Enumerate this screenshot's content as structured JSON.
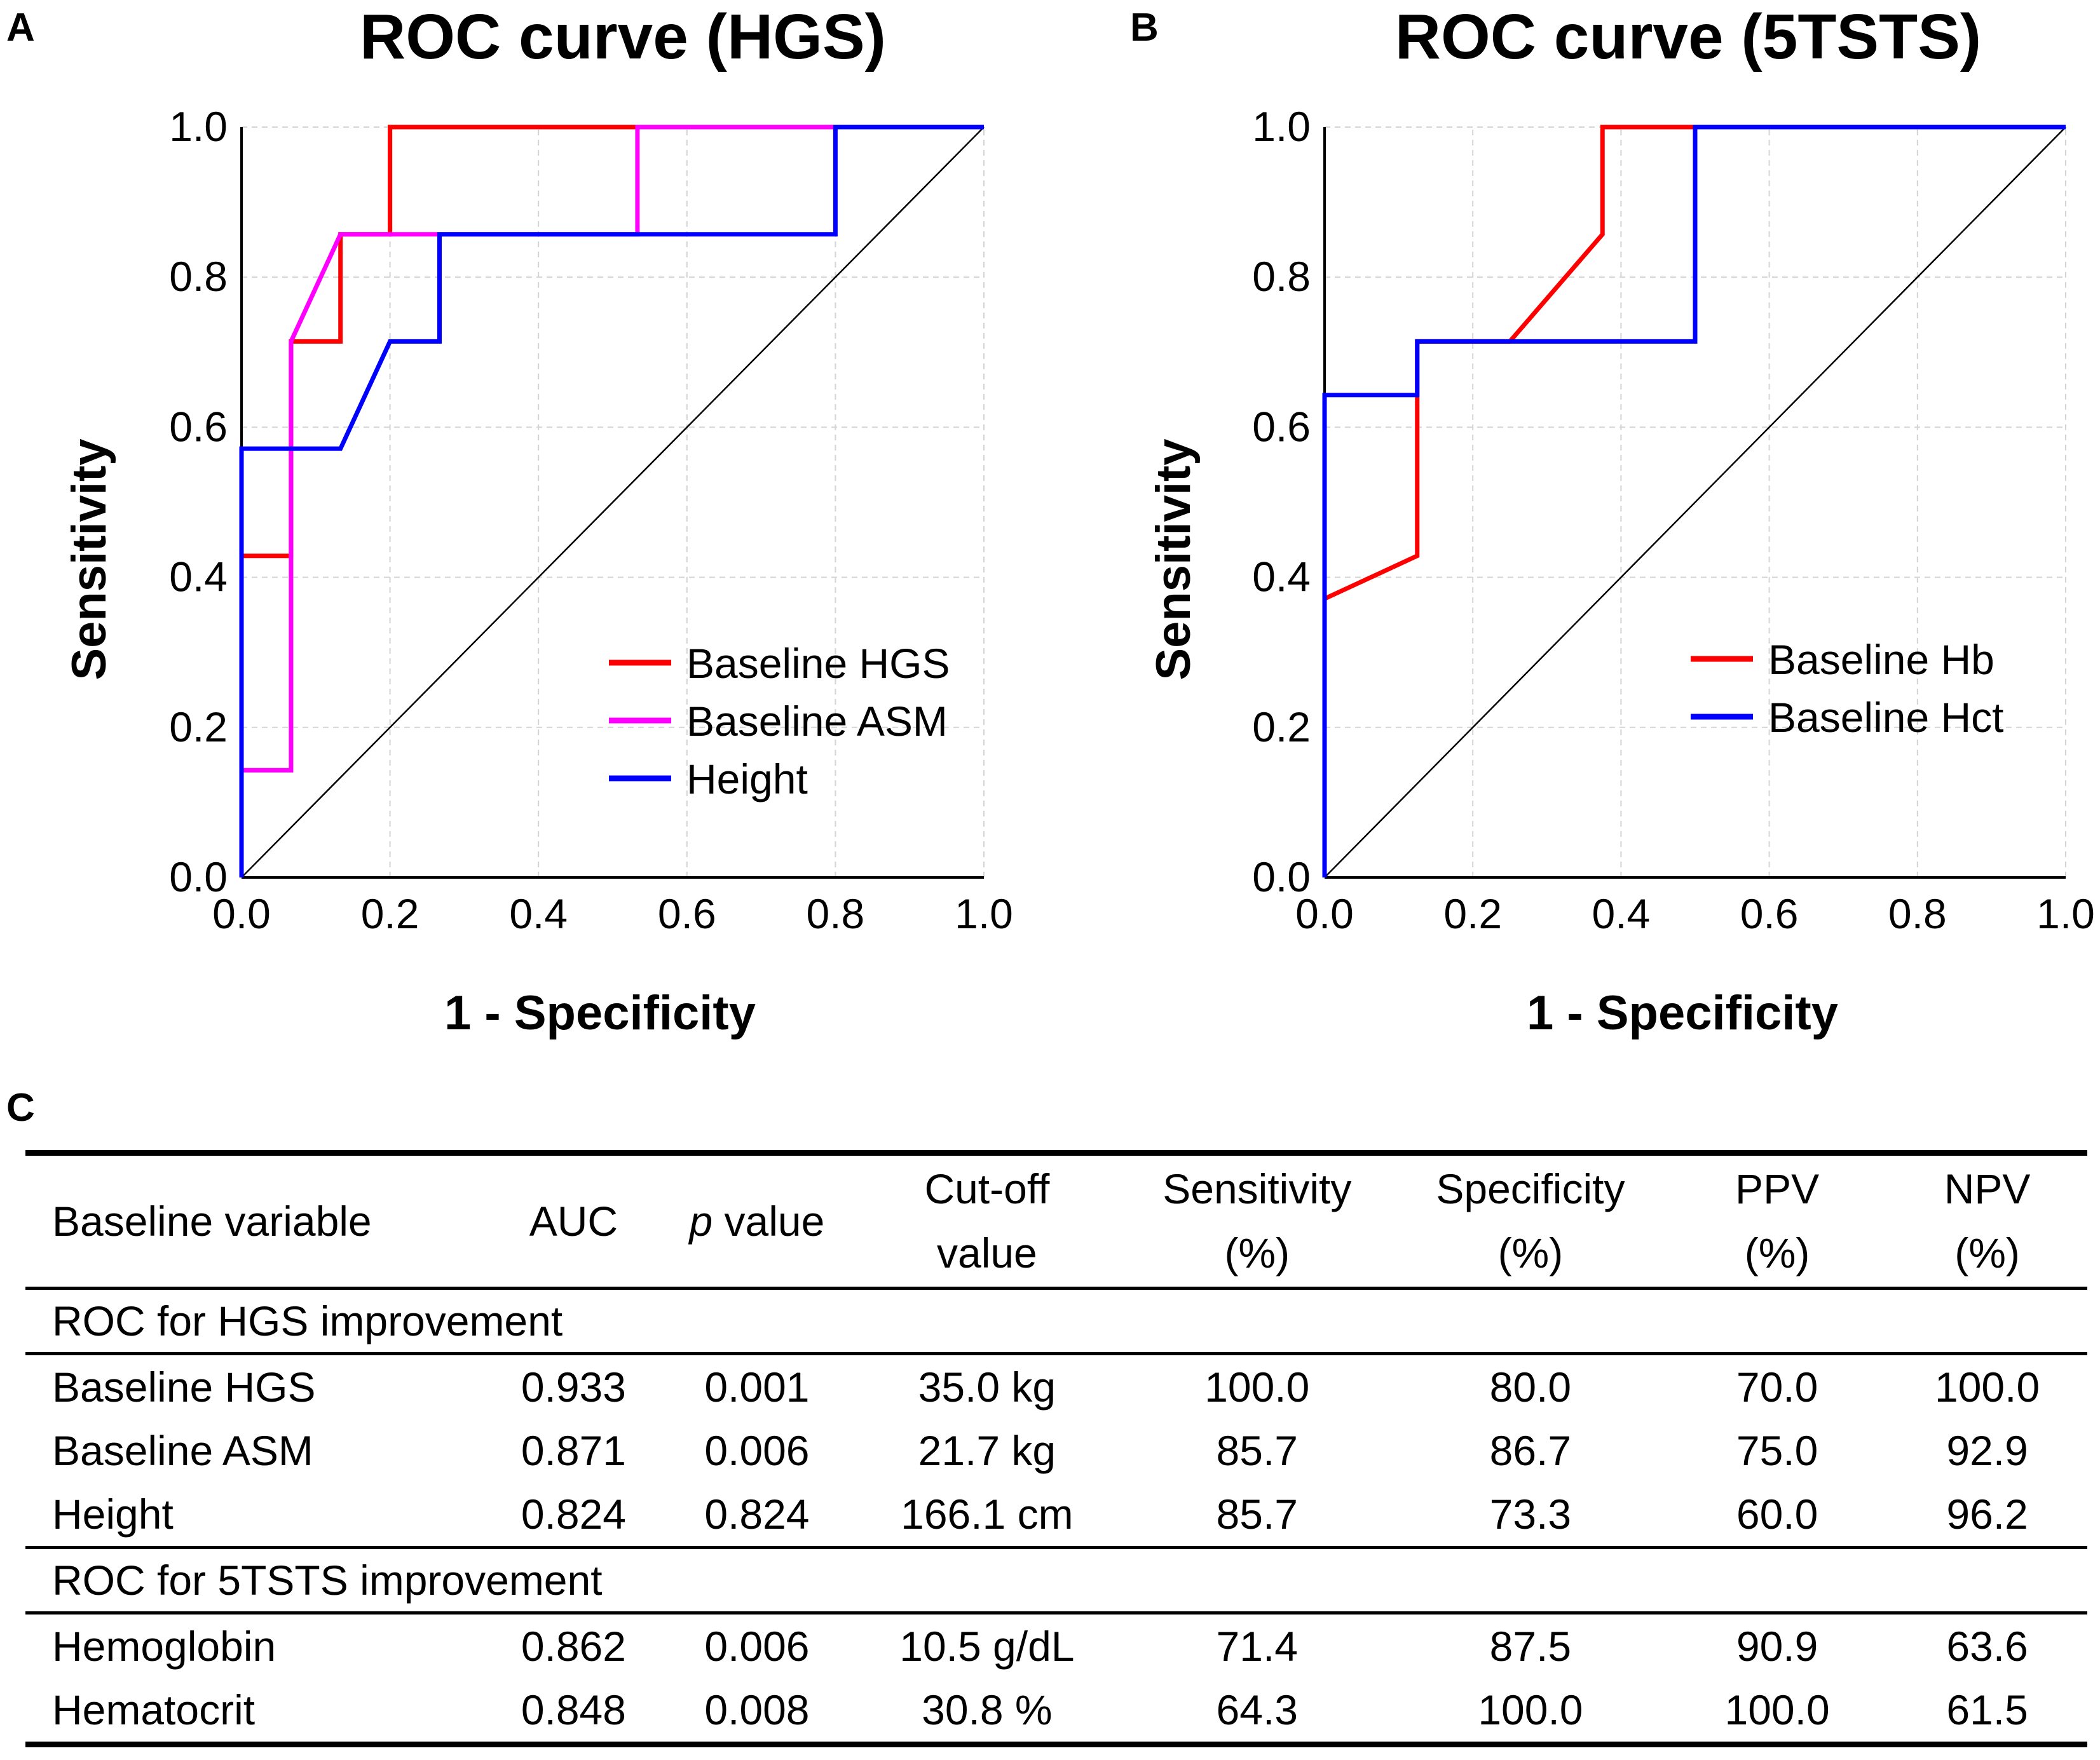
{
  "panels": [
    {
      "letter": "A"
    },
    {
      "letter": "B"
    },
    {
      "letter": "C"
    }
  ],
  "chart_data": [
    {
      "type": "line",
      "title": "ROC curve (HGS)",
      "xlabel": "1 - Specificity",
      "ylabel": "Sensitivity",
      "xlim": [
        0,
        1
      ],
      "ylim": [
        0,
        1
      ],
      "xticks": [
        "0.0",
        "0.2",
        "0.4",
        "0.6",
        "0.8",
        "1.0"
      ],
      "yticks": [
        "0.0",
        "0.2",
        "0.4",
        "0.6",
        "0.8",
        "1.0"
      ],
      "grid": true,
      "legend_position": "bottom-right",
      "series": [
        {
          "name": "Baseline HGS",
          "color": "#ff0000",
          "x": [
            0,
            0,
            0.0667,
            0.0667,
            0.1333,
            0.1333,
            0.2,
            0.2,
            1.0
          ],
          "y": [
            0,
            0.4286,
            0.4286,
            0.7143,
            0.7143,
            0.8571,
            0.8571,
            1.0,
            1.0
          ]
        },
        {
          "name": "Baseline ASM",
          "color": "#ff00ff",
          "x": [
            0,
            0,
            0.0667,
            0.0667,
            0.1333,
            0.5333,
            0.5333,
            1.0
          ],
          "y": [
            0,
            0.1429,
            0.1429,
            0.7143,
            0.8571,
            0.8571,
            1.0,
            1.0
          ]
        },
        {
          "name": "Height",
          "color": "#0000ff",
          "x": [
            0,
            0,
            0.1333,
            0.2,
            0.2667,
            0.2667,
            0.8,
            0.8,
            1.0
          ],
          "y": [
            0,
            0.5714,
            0.5714,
            0.7143,
            0.7143,
            0.8571,
            0.8571,
            1.0,
            1.0
          ]
        }
      ]
    },
    {
      "type": "line",
      "title": "ROC curve (5TSTS)",
      "xlabel": "1 - Specificity",
      "ylabel": "Sensitivity",
      "xlim": [
        0,
        1
      ],
      "ylim": [
        0,
        1
      ],
      "xticks": [
        "0.0",
        "0.2",
        "0.4",
        "0.6",
        "0.8",
        "1.0"
      ],
      "yticks": [
        "0.0",
        "0.2",
        "0.4",
        "0.6",
        "0.8",
        "1.0"
      ],
      "grid": true,
      "legend_position": "bottom-right",
      "series": [
        {
          "name": "Baseline Hb",
          "color": "#ff0000",
          "x": [
            0,
            0,
            0.125,
            0.125,
            0.25,
            0.375,
            0.375,
            1.0
          ],
          "y": [
            0,
            0.3714,
            0.4286,
            0.7143,
            0.7143,
            0.8571,
            1.0,
            1.0
          ]
        },
        {
          "name": "Baseline Hct",
          "color": "#0000ff",
          "x": [
            0,
            0,
            0.125,
            0.125,
            0.5,
            0.5,
            1.0
          ],
          "y": [
            0,
            0.6429,
            0.6429,
            0.7143,
            0.7143,
            1.0,
            1.0
          ]
        }
      ]
    },
    {
      "type": "table",
      "headers": [
        {
          "line1": "Baseline variable",
          "line2": ""
        },
        {
          "line1": "AUC",
          "line2": ""
        },
        {
          "line1": "p",
          "line1b": " value",
          "line2": ""
        },
        {
          "line1": "Cut-off",
          "line2": "value"
        },
        {
          "line1": "Sensitivity",
          "line2": "(%)"
        },
        {
          "line1": "Specificity",
          "line2": "(%)"
        },
        {
          "line1": "PPV",
          "line2": "(%)"
        },
        {
          "line1": "NPV",
          "line2": "(%)"
        }
      ],
      "sections": [
        {
          "title": "ROC for HGS improvement",
          "rows": [
            [
              "Baseline HGS",
              "0.933",
              "0.001",
              "35.0 kg",
              "100.0",
              "80.0",
              "70.0",
              "100.0"
            ],
            [
              "Baseline ASM",
              "0.871",
              "0.006",
              "21.7 kg",
              "85.7",
              "86.7",
              "75.0",
              "92.9"
            ],
            [
              "Height",
              "0.824",
              "0.824",
              "166.1 cm",
              "85.7",
              "73.3",
              "60.0",
              "96.2"
            ]
          ]
        },
        {
          "title": "ROC for 5TSTS improvement",
          "rows": [
            [
              "Hemoglobin",
              "0.862",
              "0.006",
              "10.5 g/dL",
              "71.4",
              "87.5",
              "90.9",
              "63.6"
            ],
            [
              "Hematocrit",
              "0.848",
              "0.008",
              "30.8 %",
              "64.3",
              "100.0",
              "100.0",
              "61.5"
            ]
          ]
        }
      ]
    }
  ]
}
